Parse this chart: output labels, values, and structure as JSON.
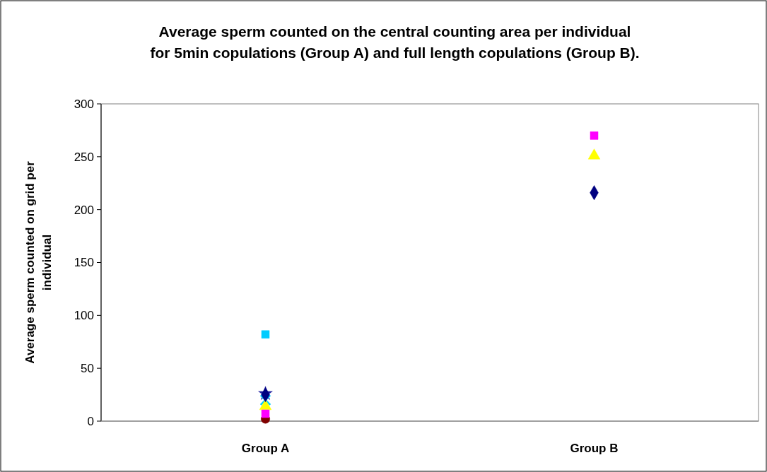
{
  "chart_data": {
    "type": "scatter",
    "title": "Average sperm counted on the central counting area per individual\nfor 5min copulations (Group A) and full length copulations (Group B).",
    "ylabel": "Average sperm counted on grid per\nindividual",
    "categories": [
      "Group A",
      "Group B"
    ],
    "ylim": [
      0,
      300
    ],
    "yticks": [
      0,
      50,
      100,
      150,
      200,
      250,
      300
    ],
    "grid": false,
    "series": [
      {
        "color": "#000080",
        "marker": "diamond",
        "values": [
          25,
          216
        ]
      },
      {
        "color": "#ff00ff",
        "marker": "square",
        "values": [
          7,
          270
        ]
      },
      {
        "color": "#ffff00",
        "marker": "triangle",
        "values": [
          14,
          251
        ]
      },
      {
        "color": "#00ccff",
        "marker": "cross",
        "values": [
          20,
          null
        ]
      },
      {
        "color": "#2020a0",
        "marker": "star",
        "values": [
          26,
          null
        ]
      },
      {
        "color": "#800000",
        "marker": "circle",
        "values": [
          2,
          null
        ]
      },
      {
        "color": "#00ccff",
        "marker": "square",
        "values": [
          82,
          null
        ]
      }
    ]
  }
}
